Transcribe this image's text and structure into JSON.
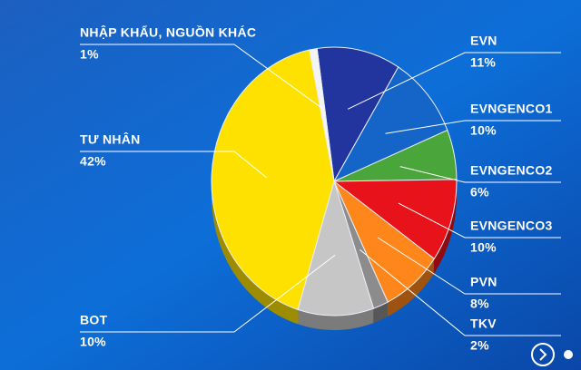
{
  "chart_data": {
    "type": "pie",
    "categories": [
      "EVN",
      "EVNGENCO1",
      "EVNGENCO2",
      "EVNGENCO3",
      "PVN",
      "TKV",
      "BOT",
      "TƯ NHÂN",
      "NHẬP KHẨU, NGUỒN KHÁC"
    ],
    "values": [
      11,
      10,
      6,
      10,
      8,
      2,
      10,
      42,
      1
    ],
    "value_labels": [
      "11%",
      "10%",
      "6%",
      "10%",
      "8%",
      "2%",
      "10%",
      "42%",
      "1%"
    ],
    "colors": [
      "#22359e",
      "#1565c8",
      "#4aa63a",
      "#e8121a",
      "#ff861a",
      "#8c8c8c",
      "#c6c6c6",
      "#ffe100",
      "#f4f4f4"
    ]
  }
}
